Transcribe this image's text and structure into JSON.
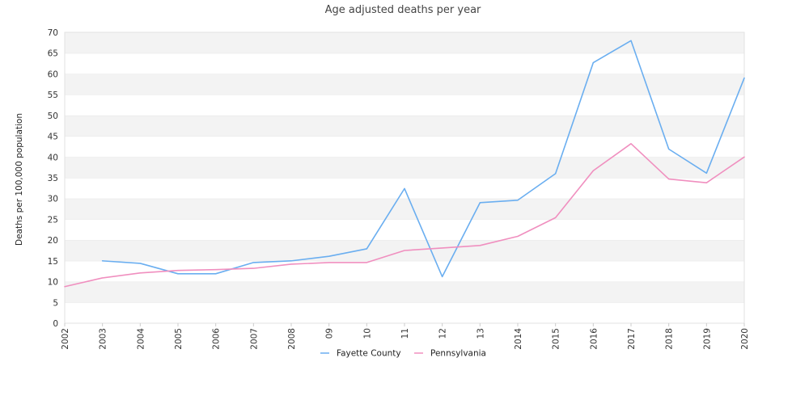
{
  "chart_data": {
    "type": "line",
    "title": "Age adjusted deaths per year",
    "ylabel": "Deaths per 100,000 population",
    "xlabel": "",
    "categories": [
      "2002",
      "2003",
      "2004",
      "2005",
      "2006",
      "2007",
      "2008",
      "09",
      "10",
      "11",
      "12",
      "13",
      "2014",
      "2015",
      "2016",
      "2017",
      "2018",
      "2019",
      "2020"
    ],
    "ylim": [
      0,
      70
    ],
    "yticks": [
      0,
      5,
      10,
      15,
      20,
      25,
      30,
      35,
      40,
      45,
      50,
      55,
      60,
      65,
      70
    ],
    "grid": "alternating horizontal bands",
    "legend_position": "bottom-center",
    "series": [
      {
        "name": "Fayette County",
        "color": "#6aaef0",
        "values": [
          null,
          15.0,
          14.4,
          11.9,
          11.9,
          14.6,
          15.0,
          16.1,
          17.9,
          32.4,
          11.2,
          29.0,
          29.6,
          36.0,
          62.7,
          68.0,
          41.9,
          36.1,
          59.0
        ]
      },
      {
        "name": "Pennsylvania",
        "color": "#f08fbf",
        "values": [
          8.8,
          10.9,
          12.1,
          12.7,
          12.9,
          13.2,
          14.2,
          14.6,
          14.6,
          17.5,
          18.1,
          18.7,
          20.9,
          25.4,
          36.7,
          43.2,
          34.7,
          33.8,
          40.0
        ]
      }
    ]
  }
}
